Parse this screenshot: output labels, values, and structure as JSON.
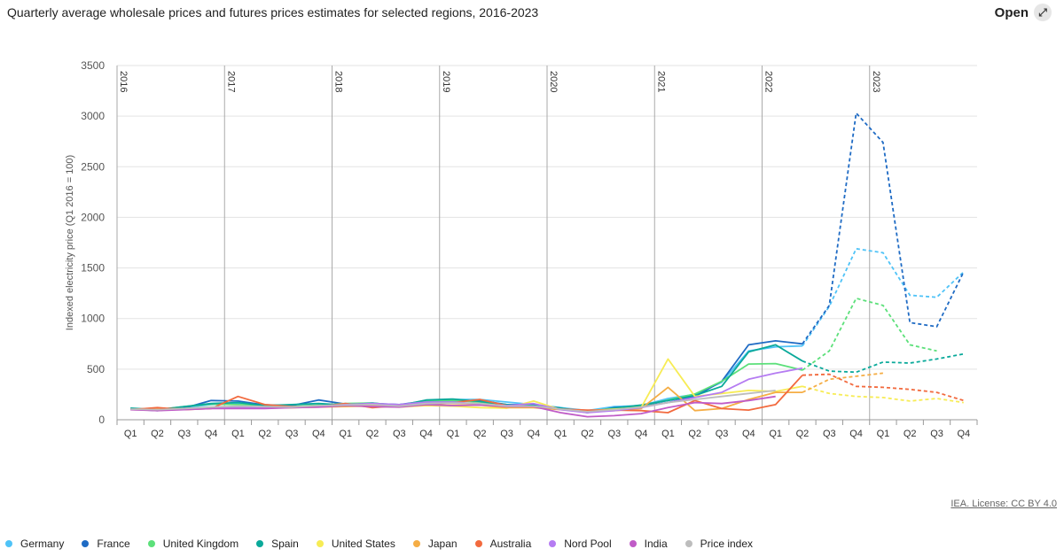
{
  "header": {
    "title": "Quarterly average wholesale prices and futures prices estimates for selected regions, 2016-2023",
    "open_label": "Open"
  },
  "footer": {
    "license": "IEA. License: CC BY 4.0"
  },
  "chart_data": {
    "type": "line",
    "title": "Quarterly average wholesale prices and futures prices estimates for selected regions, 2016-2023",
    "ylabel": "Indexed electricity price (Q1 2016 = 100)",
    "xlabel": "",
    "ylim": [
      0,
      3500
    ],
    "yticks": [
      0,
      500,
      1000,
      1500,
      2000,
      2500,
      3000,
      3500
    ],
    "years": [
      "2016",
      "2017",
      "2018",
      "2019",
      "2020",
      "2021",
      "2022",
      "2023"
    ],
    "quarters": [
      "Q1",
      "Q2",
      "Q3",
      "Q4"
    ],
    "series": [
      {
        "name": "Germany",
        "color": "#4fc3f7",
        "values": [
          110,
          95,
          120,
          150,
          165,
          150,
          135,
          140,
          150,
          155,
          150,
          170,
          200,
          200,
          175,
          150,
          120,
          90,
          130,
          140,
          210,
          250,
          370,
          680,
          720,
          730,
          1120,
          1690,
          1650,
          1230,
          1210,
          1460
        ],
        "forecast_from": 25
      },
      {
        "name": "France",
        "color": "#1f6bc4",
        "values": [
          105,
          90,
          115,
          190,
          185,
          145,
          140,
          195,
          155,
          160,
          150,
          185,
          185,
          190,
          150,
          150,
          115,
          70,
          120,
          135,
          170,
          230,
          380,
          740,
          780,
          750,
          1130,
          3030,
          2740,
          960,
          920,
          1460
        ],
        "forecast_from": 25
      },
      {
        "name": "United Kingdom",
        "color": "#5ce07a",
        "values": [
          110,
          100,
          130,
          155,
          150,
          145,
          130,
          145,
          160,
          165,
          140,
          190,
          190,
          175,
          140,
          135,
          110,
          80,
          110,
          140,
          195,
          255,
          380,
          550,
          555,
          490,
          680,
          1200,
          1130,
          740,
          680,
          null
        ],
        "forecast_from": 25
      },
      {
        "name": "Spain",
        "color": "#0aa99a",
        "values": [
          115,
          100,
          130,
          160,
          170,
          140,
          150,
          160,
          145,
          165,
          140,
          195,
          205,
          180,
          150,
          140,
          115,
          80,
          115,
          145,
          190,
          240,
          330,
          670,
          740,
          580,
          480,
          470,
          570,
          560,
          600,
          650
        ],
        "forecast_from": 25
      },
      {
        "name": "United States",
        "color": "#f7ec55",
        "values": [
          100,
          95,
          110,
          120,
          120,
          115,
          120,
          130,
          135,
          130,
          125,
          140,
          135,
          120,
          115,
          185,
          100,
          90,
          105,
          120,
          600,
          230,
          260,
          290,
          280,
          330,
          260,
          230,
          220,
          185,
          210,
          170
        ],
        "forecast_from": 25
      },
      {
        "name": "Japan",
        "color": "#f5ad45",
        "values": [
          100,
          105,
          110,
          115,
          120,
          120,
          120,
          125,
          130,
          140,
          130,
          145,
          145,
          145,
          120,
          120,
          100,
          80,
          90,
          110,
          320,
          90,
          110,
          200,
          270,
          270,
          400,
          430,
          460,
          null,
          null,
          null
        ],
        "forecast_from": 25
      },
      {
        "name": "Australia",
        "color": "#f26a3e",
        "values": [
          100,
          120,
          100,
          110,
          230,
          150,
          130,
          130,
          160,
          120,
          140,
          150,
          170,
          200,
          140,
          130,
          105,
          95,
          95,
          90,
          70,
          190,
          110,
          95,
          150,
          440,
          450,
          330,
          320,
          300,
          270,
          190
        ],
        "forecast_from": 25
      },
      {
        "name": "Nord Pool",
        "color": "#b57cf2",
        "values": [
          100,
          95,
          110,
          120,
          125,
          120,
          125,
          135,
          150,
          160,
          150,
          175,
          175,
          155,
          140,
          160,
          100,
          70,
          90,
          120,
          170,
          220,
          270,
          400,
          460,
          510,
          null,
          null,
          null,
          null,
          null,
          null
        ],
        "forecast_from": 25
      },
      {
        "name": "India",
        "color": "#c05cc7",
        "values": [
          100,
          90,
          100,
          110,
          110,
          110,
          120,
          125,
          140,
          130,
          125,
          150,
          140,
          145,
          130,
          130,
          70,
          30,
          40,
          60,
          120,
          170,
          160,
          190,
          230,
          null,
          null,
          null,
          null,
          null,
          null,
          null
        ],
        "forecast_from": 25
      },
      {
        "name": "Price index",
        "color": "#bdbdbd",
        "values": [
          105,
          100,
          110,
          125,
          135,
          130,
          125,
          140,
          145,
          150,
          135,
          160,
          165,
          160,
          135,
          135,
          105,
          80,
          100,
          125,
          170,
          200,
          230,
          260,
          290,
          null,
          null,
          null,
          null,
          null,
          null,
          null
        ],
        "forecast_from": 25
      }
    ]
  }
}
